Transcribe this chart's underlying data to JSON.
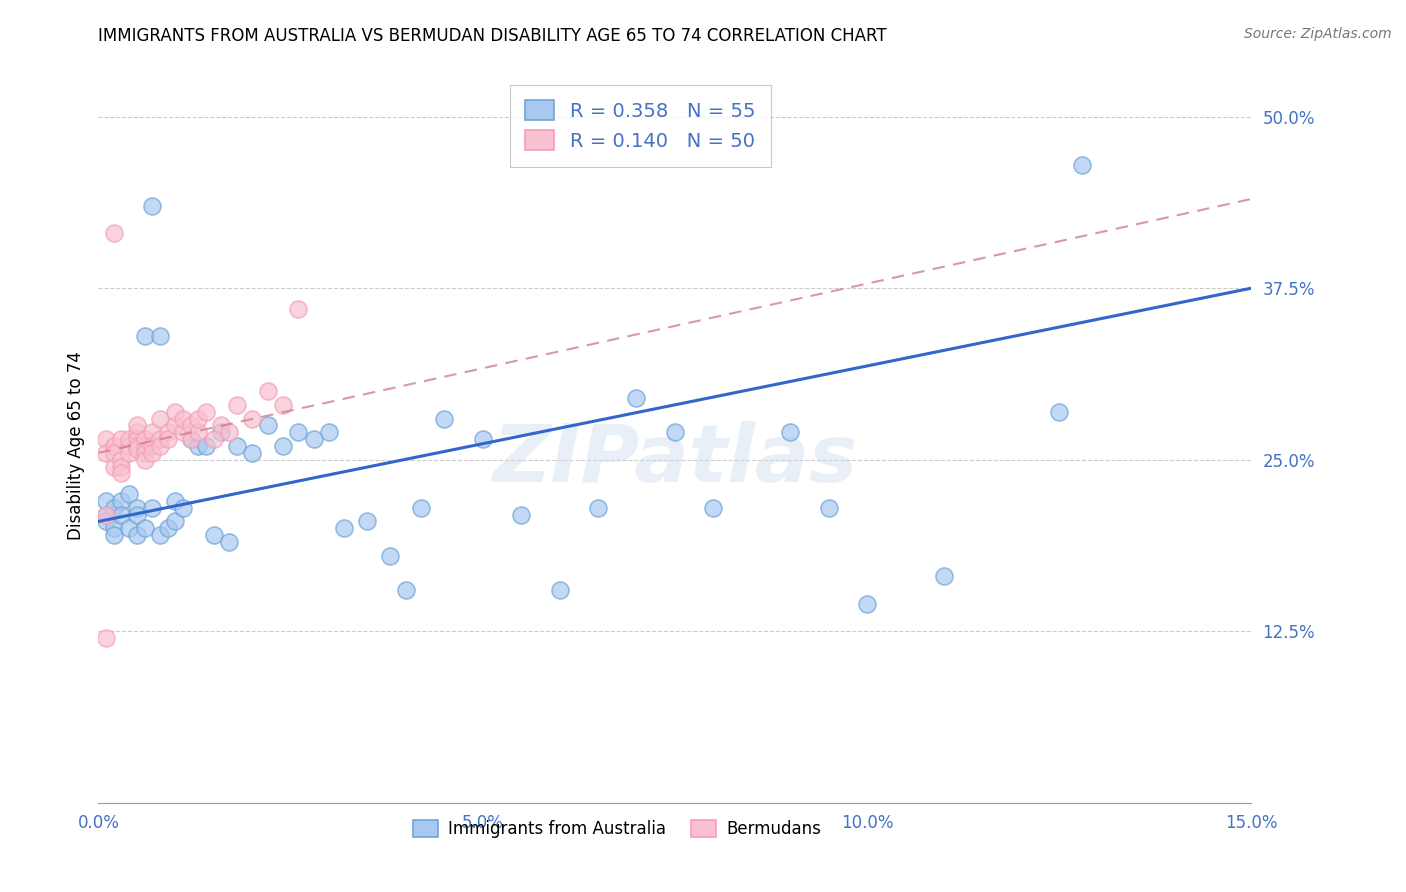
{
  "title": "IMMIGRANTS FROM AUSTRALIA VS BERMUDAN DISABILITY AGE 65 TO 74 CORRELATION CHART",
  "source": "Source: ZipAtlas.com",
  "tick_color": "#4472c4",
  "ylabel": "Disability Age 65 to 74",
  "xmin": 0.0,
  "xmax": 0.15,
  "ymin": 0.0,
  "ymax": 0.52,
  "blue_color": "#6ea6d8",
  "pink_color": "#f4a0b5",
  "blue_fill": "#a8c8f0",
  "pink_fill": "#f8c0d0",
  "trend_blue": "#3366cc",
  "trend_pink": "#cc7788",
  "watermark": "ZIPatlas",
  "background_color": "#ffffff",
  "grid_color": "#cccccc",
  "legend_r1": "R = 0.358",
  "legend_n1": "N = 55",
  "legend_r2": "R = 0.140",
  "legend_n2": "N = 50",
  "aus_trend_x0": 0.0,
  "aus_trend_y0": 0.205,
  "aus_trend_x1": 0.15,
  "aus_trend_y1": 0.375,
  "berm_trend_x0": 0.0,
  "berm_trend_y0": 0.255,
  "berm_trend_x1": 0.15,
  "berm_trend_y1": 0.44,
  "australia_x": [
    0.001,
    0.001,
    0.001,
    0.002,
    0.002,
    0.002,
    0.003,
    0.003,
    0.004,
    0.004,
    0.005,
    0.005,
    0.005,
    0.006,
    0.006,
    0.007,
    0.007,
    0.008,
    0.008,
    0.009,
    0.01,
    0.01,
    0.011,
    0.012,
    0.013,
    0.014,
    0.015,
    0.016,
    0.017,
    0.018,
    0.02,
    0.022,
    0.024,
    0.026,
    0.028,
    0.03,
    0.032,
    0.035,
    0.038,
    0.04,
    0.042,
    0.045,
    0.05,
    0.055,
    0.06,
    0.065,
    0.07,
    0.075,
    0.08,
    0.09,
    0.095,
    0.1,
    0.11,
    0.125,
    0.128
  ],
  "australia_y": [
    0.21,
    0.22,
    0.205,
    0.215,
    0.2,
    0.195,
    0.22,
    0.21,
    0.225,
    0.2,
    0.215,
    0.195,
    0.21,
    0.34,
    0.2,
    0.435,
    0.215,
    0.34,
    0.195,
    0.2,
    0.22,
    0.205,
    0.215,
    0.265,
    0.26,
    0.26,
    0.195,
    0.27,
    0.19,
    0.26,
    0.255,
    0.275,
    0.26,
    0.27,
    0.265,
    0.27,
    0.2,
    0.205,
    0.18,
    0.155,
    0.215,
    0.28,
    0.265,
    0.21,
    0.155,
    0.215,
    0.295,
    0.27,
    0.215,
    0.27,
    0.215,
    0.145,
    0.165,
    0.285,
    0.465
  ],
  "bermuda_x": [
    0.001,
    0.001,
    0.001,
    0.002,
    0.002,
    0.002,
    0.002,
    0.003,
    0.003,
    0.003,
    0.003,
    0.004,
    0.004,
    0.004,
    0.005,
    0.005,
    0.005,
    0.005,
    0.005,
    0.006,
    0.006,
    0.006,
    0.006,
    0.007,
    0.007,
    0.007,
    0.008,
    0.008,
    0.008,
    0.009,
    0.009,
    0.01,
    0.01,
    0.011,
    0.011,
    0.012,
    0.012,
    0.013,
    0.013,
    0.014,
    0.015,
    0.016,
    0.017,
    0.018,
    0.02,
    0.022,
    0.024,
    0.026,
    0.002,
    0.001
  ],
  "bermuda_y": [
    0.265,
    0.255,
    0.21,
    0.26,
    0.245,
    0.26,
    0.255,
    0.265,
    0.25,
    0.245,
    0.24,
    0.26,
    0.265,
    0.255,
    0.27,
    0.265,
    0.26,
    0.258,
    0.275,
    0.26,
    0.265,
    0.255,
    0.25,
    0.27,
    0.26,
    0.255,
    0.28,
    0.265,
    0.26,
    0.27,
    0.265,
    0.275,
    0.285,
    0.27,
    0.28,
    0.265,
    0.275,
    0.27,
    0.28,
    0.285,
    0.265,
    0.275,
    0.27,
    0.29,
    0.28,
    0.3,
    0.29,
    0.36,
    0.415,
    0.12
  ]
}
